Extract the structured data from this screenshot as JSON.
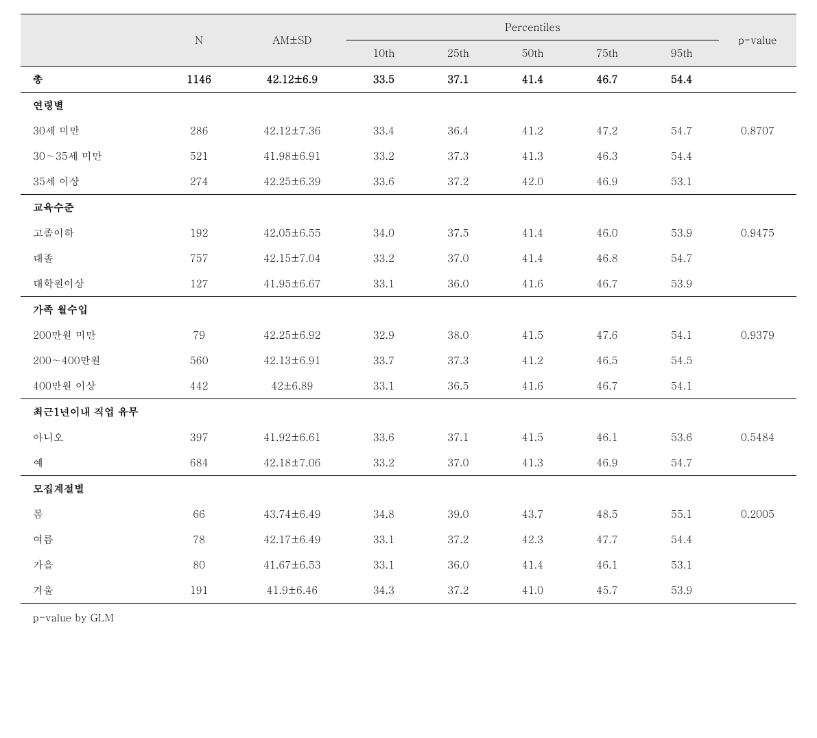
{
  "table": {
    "header": {
      "n": "N",
      "amsd": "AM±SD",
      "percentiles_label": "Percentiles",
      "p10": "10th",
      "p25": "25th",
      "p50": "50th",
      "p75": "75th",
      "p95": "95th",
      "pvalue": "p-value"
    },
    "sections": [
      {
        "rows": [
          {
            "label": "총",
            "bold": true,
            "n": "1146",
            "amsd": "42.12±6.9",
            "p10": "33.5",
            "p25": "37.1",
            "p50": "41.4",
            "p75": "46.7",
            "p95": "54.4",
            "pv": ""
          }
        ]
      },
      {
        "title": "연령별",
        "rows": [
          {
            "label": "30세 미만",
            "n": "286",
            "amsd": "42.12±7.36",
            "p10": "33.4",
            "p25": "36.4",
            "p50": "41.2",
            "p75": "47.2",
            "p95": "54.7",
            "pv": "0.8707"
          },
          {
            "label": "30∼35세 미만",
            "n": "521",
            "amsd": "41.98±6.91",
            "p10": "33.2",
            "p25": "37.3",
            "p50": "41.3",
            "p75": "46.3",
            "p95": "54.4",
            "pv": ""
          },
          {
            "label": "35세 이상",
            "n": "274",
            "amsd": "42.25±6.39",
            "p10": "33.6",
            "p25": "37.2",
            "p50": "42.0",
            "p75": "46.9",
            "p95": "53.1",
            "pv": ""
          }
        ]
      },
      {
        "title": "교육수준",
        "rows": [
          {
            "label": "고졸이하",
            "n": "192",
            "amsd": "42.05±6.55",
            "p10": "34.0",
            "p25": "37.5",
            "p50": "41.4",
            "p75": "46.0",
            "p95": "53.9",
            "pv": "0.9475"
          },
          {
            "label": "대졸",
            "n": "757",
            "amsd": "42.15±7.04",
            "p10": "33.2",
            "p25": "37.0",
            "p50": "41.4",
            "p75": "46.8",
            "p95": "54.7",
            "pv": ""
          },
          {
            "label": "대학원이상",
            "n": "127",
            "amsd": "41.95±6.67",
            "p10": "33.1",
            "p25": "36.0",
            "p50": "41.6",
            "p75": "46.7",
            "p95": "53.9",
            "pv": ""
          }
        ]
      },
      {
        "title": "가족 월수입",
        "rows": [
          {
            "label": "200만원 미만",
            "n": "79",
            "amsd": "42.25±6.92",
            "p10": "32.9",
            "p25": "38.0",
            "p50": "41.5",
            "p75": "47.6",
            "p95": "54.1",
            "pv": "0.9379"
          },
          {
            "label": "200∼400만원",
            "n": "560",
            "amsd": "42.13±6.91",
            "p10": "33.7",
            "p25": "37.3",
            "p50": "41.2",
            "p75": "46.5",
            "p95": "54.5",
            "pv": ""
          },
          {
            "label": "400만원 이상",
            "n": "442",
            "amsd": "42±6.89",
            "p10": "33.1",
            "p25": "36.5",
            "p50": "41.6",
            "p75": "46.7",
            "p95": "54.1",
            "pv": ""
          }
        ]
      },
      {
        "title": "최근1년이내 직업 유무",
        "rows": [
          {
            "label": "아니오",
            "n": "397",
            "amsd": "41.92±6.61",
            "p10": "33.6",
            "p25": "37.1",
            "p50": "41.5",
            "p75": "46.1",
            "p95": "53.6",
            "pv": "0.5484"
          },
          {
            "label": "예",
            "n": "684",
            "amsd": "42.18±7.06",
            "p10": "33.2",
            "p25": "37.0",
            "p50": "41.3",
            "p75": "46.9",
            "p95": "54.7",
            "pv": ""
          }
        ]
      },
      {
        "title": "모집계절별",
        "rows": [
          {
            "label": "봄",
            "n": "66",
            "amsd": "43.74±6.49",
            "p10": "34.8",
            "p25": "39.0",
            "p50": "43.7",
            "p75": "48.5",
            "p95": "55.1",
            "pv": "0.2005"
          },
          {
            "label": "여름",
            "n": "78",
            "amsd": "42.17±6.49",
            "p10": "33.1",
            "p25": "37.2",
            "p50": "42.3",
            "p75": "47.7",
            "p95": "54.4",
            "pv": ""
          },
          {
            "label": "가을",
            "n": "80",
            "amsd": "41.67±6.53",
            "p10": "33.1",
            "p25": "36.0",
            "p50": "41.4",
            "p75": "46.1",
            "p95": "53.1",
            "pv": ""
          },
          {
            "label": "겨울",
            "n": "191",
            "amsd": "41.9±6.46",
            "p10": "34.3",
            "p25": "37.2",
            "p50": "41.0",
            "p75": "45.7",
            "p95": "53.9",
            "pv": ""
          }
        ]
      }
    ],
    "footnote": "p-value by GLM"
  },
  "style": {
    "header_bg": "#e9e9e9",
    "border_color": "#000000",
    "font_size_body": 15,
    "font_size_header": 15
  }
}
